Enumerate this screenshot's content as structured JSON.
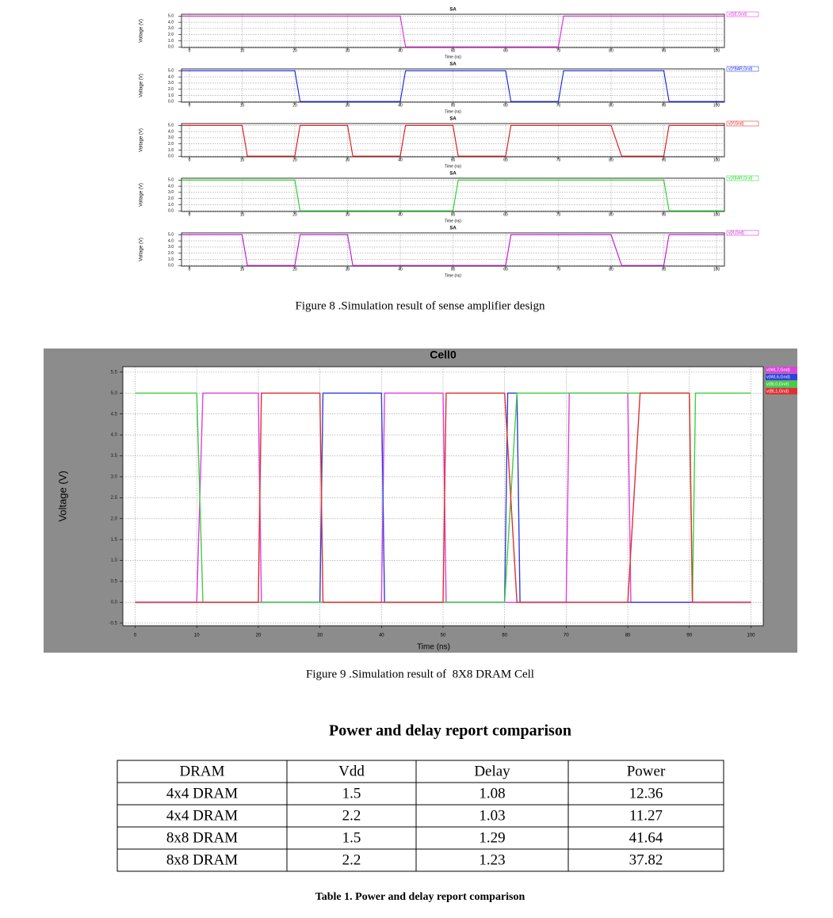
{
  "chart_data": [
    {
      "type": "line",
      "title": "SA",
      "x_label": "Time (ns)",
      "y_label": "Voltage (V)",
      "grid": true,
      "xlim": [
        -1.5,
        101.5
      ],
      "ylim": [
        -0.1,
        5.3
      ],
      "xticks": [
        0,
        10,
        20,
        30,
        40,
        50,
        60,
        70,
        80,
        90,
        100
      ],
      "yticks": [
        {
          "value": 0,
          "label": "0.0"
        },
        {
          "value": 1,
          "label": "1.0"
        },
        {
          "value": 2,
          "label": "2.0"
        },
        {
          "value": 3,
          "label": "3.0"
        },
        {
          "value": 4,
          "label": "4.0"
        },
        {
          "value": 5,
          "label": "5.0"
        }
      ],
      "series": [
        {
          "name": "v(SE,Gnd)",
          "color": "#e020e0",
          "x": [
            -1.5,
            40,
            41,
            70,
            71,
            101.5
          ],
          "values": [
            5,
            5,
            0,
            0,
            5,
            5
          ]
        }
      ]
    },
    {
      "type": "line",
      "title": "SA",
      "x_label": "Time (ns)",
      "y_label": "Voltage (V)",
      "grid": true,
      "xlim": [
        -1.5,
        101.5
      ],
      "ylim": [
        -0.1,
        5.3
      ],
      "xticks": [
        0,
        10,
        20,
        30,
        40,
        50,
        60,
        70,
        80,
        90,
        100
      ],
      "yticks": [
        {
          "value": 0,
          "label": "0.0"
        },
        {
          "value": 1,
          "label": "1.0"
        },
        {
          "value": 2,
          "label": "2.0"
        },
        {
          "value": 3,
          "label": "3.0"
        },
        {
          "value": 4,
          "label": "4.0"
        },
        {
          "value": 5,
          "label": "5.0"
        }
      ],
      "series": [
        {
          "name": "v(YBAR,Gnd)",
          "color": "#1020e0",
          "x": [
            -1.5,
            20,
            21,
            40,
            41,
            60,
            61,
            70,
            71,
            90,
            91,
            101.5
          ],
          "values": [
            5,
            5,
            0,
            0,
            5,
            5,
            0,
            0,
            5,
            5,
            0,
            0
          ]
        }
      ]
    },
    {
      "type": "line",
      "title": "SA",
      "x_label": "Time (ns)",
      "y_label": "Voltage (V)",
      "grid": true,
      "xlim": [
        -1.5,
        101.5
      ],
      "ylim": [
        -0.1,
        5.3
      ],
      "xticks": [
        0,
        10,
        20,
        30,
        40,
        50,
        60,
        70,
        80,
        90,
        100
      ],
      "yticks": [
        {
          "value": 0,
          "label": "0.0"
        },
        {
          "value": 1,
          "label": "1.0"
        },
        {
          "value": 2,
          "label": "2.0"
        },
        {
          "value": 3,
          "label": "3.0"
        },
        {
          "value": 4,
          "label": "4.0"
        },
        {
          "value": 5,
          "label": "5.0"
        }
      ],
      "series": [
        {
          "name": "v(Y,Gnd)",
          "color": "#e01010",
          "x": [
            -1.5,
            10,
            11,
            20,
            21,
            30,
            31,
            40,
            41,
            50,
            51,
            60,
            61,
            80,
            82,
            90,
            91,
            101.5
          ],
          "values": [
            5,
            5,
            0,
            0,
            5,
            5,
            0,
            0,
            5,
            5,
            0,
            0,
            5,
            5,
            0,
            0,
            5,
            5
          ]
        }
      ]
    },
    {
      "type": "line",
      "title": "SA",
      "x_label": "Time (ns)",
      "y_label": "Voltage (V)",
      "grid": true,
      "xlim": [
        -1.5,
        101.5
      ],
      "ylim": [
        -0.1,
        5.3
      ],
      "xticks": [
        0,
        10,
        20,
        30,
        40,
        50,
        60,
        70,
        80,
        90,
        100
      ],
      "yticks": [
        {
          "value": 0,
          "label": "0.0"
        },
        {
          "value": 1,
          "label": "1.0"
        },
        {
          "value": 2,
          "label": "2.0"
        },
        {
          "value": 3,
          "label": "3.0"
        },
        {
          "value": 4,
          "label": "4.0"
        },
        {
          "value": 5,
          "label": "5.0"
        }
      ],
      "series": [
        {
          "name": "v(XBAR,Gnd)",
          "color": "#20d020",
          "x": [
            -1.5,
            20,
            21,
            50,
            51,
            90,
            91,
            101.5
          ],
          "values": [
            5,
            5,
            0,
            0,
            5,
            5,
            0,
            0
          ]
        }
      ]
    },
    {
      "type": "line",
      "title": "SA",
      "x_label": "Time (ns)",
      "y_label": "Voltage (V)",
      "grid": true,
      "xlim": [
        -1.5,
        101.5
      ],
      "ylim": [
        -0.1,
        5.3
      ],
      "xticks": [
        0,
        10,
        20,
        30,
        40,
        50,
        60,
        70,
        80,
        90,
        100
      ],
      "yticks": [
        {
          "value": 0,
          "label": "0.0"
        },
        {
          "value": 1,
          "label": "1.0"
        },
        {
          "value": 2,
          "label": "2.0"
        },
        {
          "value": 3,
          "label": "3.0"
        },
        {
          "value": 4,
          "label": "4.0"
        },
        {
          "value": 5,
          "label": "5.0"
        }
      ],
      "series": [
        {
          "name": "v(X,Gnd)",
          "color": "#c010d0",
          "x": [
            -1.5,
            10,
            11,
            20,
            21,
            30,
            31,
            60,
            61,
            80,
            82,
            90,
            91,
            101.5
          ],
          "values": [
            5,
            5,
            0,
            0,
            5,
            5,
            0,
            0,
            5,
            5,
            0,
            0,
            5,
            5
          ]
        }
      ]
    },
    {
      "type": "line",
      "title": "Cell0",
      "x_label": "Time (ns)",
      "y_label": "Voltage (V)",
      "grid": true,
      "xlim": [
        -2,
        102
      ],
      "ylim": [
        -0.56,
        5.63
      ],
      "xticks": [
        0,
        10,
        20,
        30,
        40,
        50,
        60,
        70,
        80,
        90,
        100
      ],
      "yticks": [
        {
          "value": -0.5,
          "label": "-0.5"
        },
        {
          "value": 0,
          "label": "0.0"
        },
        {
          "value": 0.5,
          "label": "0.5"
        },
        {
          "value": 1,
          "label": "1.0"
        },
        {
          "value": 1.5,
          "label": "1.5"
        },
        {
          "value": 2,
          "label": "2.0"
        },
        {
          "value": 2.5,
          "label": "2.5"
        },
        {
          "value": 3,
          "label": "3.0"
        },
        {
          "value": 3.5,
          "label": "3.5"
        },
        {
          "value": 4,
          "label": "4.0"
        },
        {
          "value": 4.5,
          "label": "4.5"
        },
        {
          "value": 5,
          "label": "5.0"
        },
        {
          "value": 5.5,
          "label": "5.5"
        }
      ],
      "series": [
        {
          "name": "v(WL7,Gnd)",
          "color": "#e040e0",
          "x": [
            0,
            10,
            11,
            20,
            20.5,
            40,
            40.5,
            50,
            50.5,
            70,
            70.5,
            80,
            80.5,
            100
          ],
          "values": [
            0,
            0,
            5,
            5,
            0,
            0,
            5,
            5,
            0,
            0,
            5,
            5,
            0,
            0
          ]
        },
        {
          "name": "v(WL6,Gnd)",
          "color": "#3040e0",
          "x": [
            0,
            30,
            30.5,
            40,
            40.5,
            60,
            60.5,
            62,
            62.5,
            100
          ],
          "values": [
            0,
            0,
            5,
            5,
            0,
            0,
            5,
            5,
            0,
            0
          ]
        },
        {
          "name": "v(BL0,Gnd)",
          "color": "#40d040",
          "x": [
            0,
            10,
            11,
            60,
            62,
            90,
            90.5,
            91,
            100
          ],
          "values": [
            5,
            5,
            0,
            0,
            5,
            5,
            0,
            5,
            5
          ]
        },
        {
          "name": "v(BL1,Gnd)",
          "color": "#e03030",
          "x": [
            0,
            20,
            20.5,
            30,
            30.5,
            50,
            50.5,
            60,
            62,
            80,
            82,
            90,
            90.5,
            100
          ],
          "values": [
            0,
            0,
            5,
            5,
            0,
            0,
            5,
            5,
            0,
            0,
            5,
            5,
            0,
            0
          ]
        }
      ]
    }
  ],
  "captions": [
    "Figure 8 .Simulation result of sense amplifier design",
    "Figure 9 .Simulation result of  8X8 DRAM Cell"
  ],
  "table": {
    "title": "Power and delay report comparison",
    "header": [
      "DRAM",
      "Vdd",
      "Delay",
      "Power"
    ],
    "rows": [
      [
        "4x4 DRAM",
        1.5,
        1.08,
        12.36
      ],
      [
        "4x4 DRAM",
        2.2,
        1.03,
        11.27
      ],
      [
        "8x8 DRAM",
        1.5,
        1.29,
        41.64
      ],
      [
        "8x8 DRAM",
        2.2,
        1.23,
        37.82
      ]
    ],
    "caption": "Table 1. Power and delay report comparison"
  }
}
